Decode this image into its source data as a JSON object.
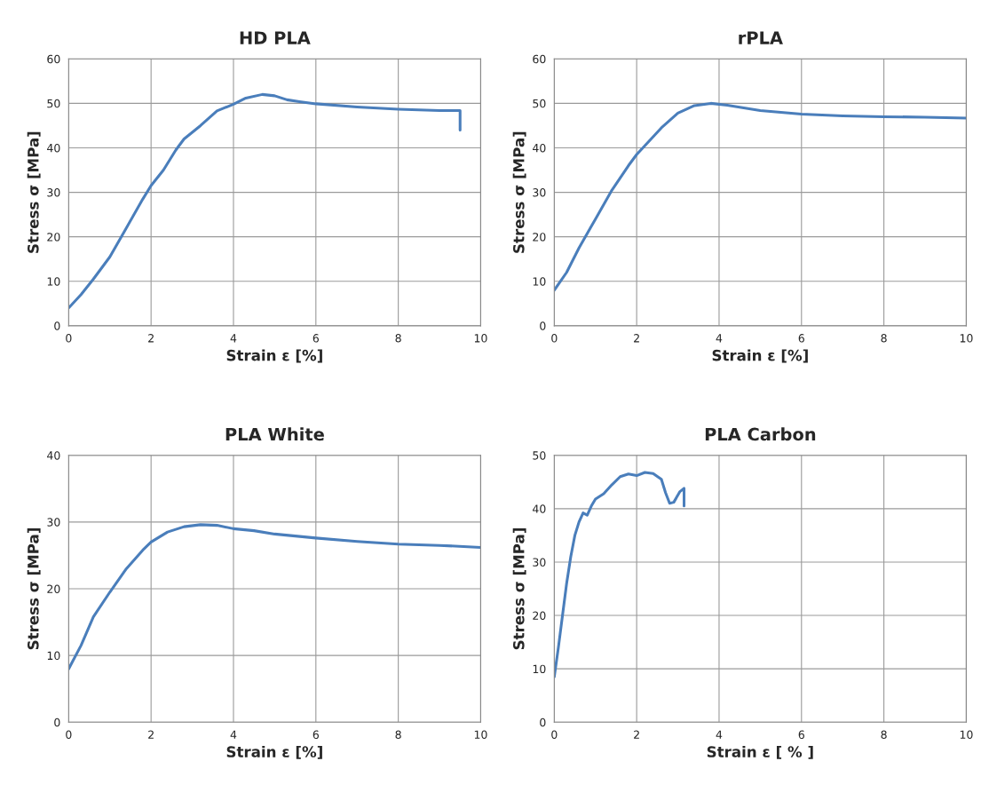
{
  "chart_data": [
    {
      "type": "line",
      "title": "HD PLA",
      "xlabel": "Strain ε [%]",
      "ylabel": "Stress σ [MPa]",
      "xlim": [
        0,
        10
      ],
      "xticks": [
        0,
        2,
        4,
        6,
        8,
        10
      ],
      "ylim": [
        0,
        60
      ],
      "yticks": [
        0,
        10,
        20,
        30,
        40,
        50,
        60
      ],
      "grid": true,
      "series": [
        {
          "color": "#4a7ebb",
          "x": [
            0,
            0.3,
            0.6,
            1,
            1.4,
            1.8,
            2,
            2.3,
            2.6,
            2.8,
            3.2,
            3.6,
            4,
            4.3,
            4.7,
            5,
            5.3,
            5.6,
            6,
            7,
            8,
            9,
            9.5,
            9.5
          ],
          "values": [
            4,
            7,
            10.5,
            15.5,
            22,
            28.5,
            31.5,
            35,
            39.5,
            42,
            45,
            48.3,
            49.8,
            51.2,
            52,
            51.7,
            50.8,
            50.4,
            49.9,
            49.2,
            48.7,
            48.4,
            48.4,
            44
          ]
        }
      ]
    },
    {
      "type": "line",
      "title": "rPLA",
      "xlabel": "Strain ε [%]",
      "ylabel": "Stress σ [MPa]",
      "xlim": [
        0,
        10
      ],
      "xticks": [
        0,
        2,
        4,
        6,
        8,
        10
      ],
      "ylim": [
        0,
        60
      ],
      "yticks": [
        0,
        10,
        20,
        30,
        40,
        50,
        60
      ],
      "grid": true,
      "series": [
        {
          "color": "#4a7ebb",
          "x": [
            0,
            0.3,
            0.6,
            1,
            1.4,
            1.8,
            2,
            2.3,
            2.6,
            3,
            3.4,
            3.8,
            4.2,
            5,
            6,
            7,
            8,
            9,
            10
          ],
          "values": [
            8,
            12,
            17.5,
            24,
            30.5,
            36,
            38.5,
            41.5,
            44.5,
            47.8,
            49.5,
            50,
            49.6,
            48.4,
            47.6,
            47.2,
            47,
            46.9,
            46.7
          ]
        }
      ]
    },
    {
      "type": "line",
      "title": "PLA White",
      "xlabel": "Strain ε [%]",
      "ylabel": "Stress σ [MPa]",
      "xlim": [
        0,
        10
      ],
      "xticks": [
        0,
        2,
        4,
        6,
        8,
        10
      ],
      "ylim": [
        0,
        40
      ],
      "yticks": [
        0,
        10,
        20,
        30,
        40
      ],
      "grid": true,
      "series": [
        {
          "color": "#4a7ebb",
          "x": [
            0,
            0.3,
            0.6,
            1,
            1.4,
            1.8,
            2,
            2.4,
            2.8,
            3.2,
            3.6,
            4,
            4.5,
            5,
            6,
            7,
            8,
            9,
            10
          ],
          "values": [
            8,
            11.5,
            15.8,
            19.5,
            23,
            25.8,
            27,
            28.5,
            29.3,
            29.6,
            29.5,
            29,
            28.7,
            28.2,
            27.6,
            27.1,
            26.7,
            26.5,
            26.2
          ]
        }
      ]
    },
    {
      "type": "line",
      "title": "PLA Carbon",
      "xlabel": "Strain ε [ % ]",
      "ylabel": "Stress σ [MPa]",
      "xlim": [
        0,
        10
      ],
      "xticks": [
        0,
        2,
        4,
        6,
        8,
        10
      ],
      "ylim": [
        0,
        50
      ],
      "yticks": [
        0,
        10,
        20,
        30,
        40,
        50
      ],
      "grid": true,
      "series": [
        {
          "color": "#4a7ebb",
          "x": [
            0,
            0.1,
            0.2,
            0.3,
            0.4,
            0.5,
            0.6,
            0.7,
            0.8,
            0.9,
            1,
            1.2,
            1.4,
            1.6,
            1.8,
            2,
            2.2,
            2.4,
            2.6,
            2.7,
            2.8,
            2.9,
            3.05,
            3.15,
            3.15
          ],
          "values": [
            8.5,
            14,
            20,
            26,
            31,
            35,
            37.5,
            39.2,
            38.8,
            40.5,
            41.8,
            42.8,
            44.5,
            46,
            46.5,
            46.2,
            46.8,
            46.6,
            45.5,
            43,
            41,
            41.2,
            43.2,
            43.8,
            40.5
          ]
        }
      ]
    }
  ]
}
